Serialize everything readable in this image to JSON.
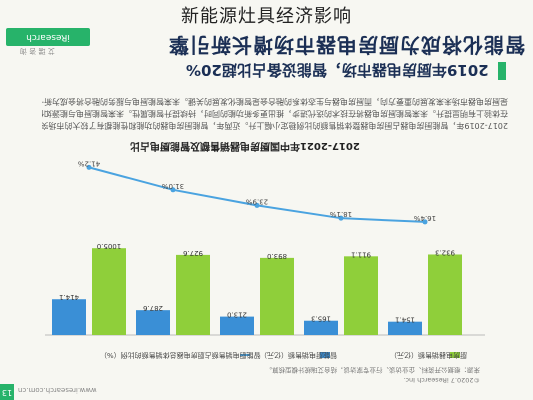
{
  "overlay_title": "新能源灶具经济影响",
  "logo": {
    "name": "iResearch",
    "sub": "艾 瑞 咨 询"
  },
  "doc_heading": "智能化将成为厨房电器市场增长新引擎",
  "section_heading": "2019年厨房电器市场，智能设备占比超20%",
  "paragraphs": [
    "2017-2019年，智能厨房电器占厨房电器整体销售额的比例稳定小幅上升。近两年，智能厨房电器的功能和性能都有了较大的市场突破，",
    "在体验上有明显提升。未来智能厨房电器将在技术的迭代进步，推出更多新功能的同时，持续提升智能属性。未来智能厨电与能源如何更好结合",
    "是厨房电器市场未来发展的重要方向，而厨房电器与生态体系的融合会是智能化发展的关键。未来智能厨电与服务的融合将会成为新一波热潮。"
  ],
  "chart_data": {
    "type": "bar",
    "title": "2017-2021年中国厨房电器销售额及智能厨电占比",
    "categories": [
      "2017",
      "2018",
      "2019",
      "2020e",
      "2021e"
    ],
    "series": [
      {
        "name": "厨房电器销售额（亿元）",
        "values": [
          932.3,
          911.1,
          893.0,
          927.6,
          1005.0
        ],
        "color": "#8fcf3a"
      },
      {
        "name": "智能厨电销售额（亿元）",
        "values": [
          154.1,
          165.3,
          213.0,
          287.6,
          414.1
        ],
        "color": "#3a8fd6"
      },
      {
        "name": "智能厨电销售额占厨房电器总体销售额的比例（%）",
        "values": [
          16.4,
          18.1,
          23.9,
          31.0,
          41.2
        ],
        "color": "#4aa3e0"
      }
    ],
    "labels": {
      "main": [
        "932.3",
        "911.1",
        "893.0",
        "927.6",
        "1005.0"
      ],
      "smart": [
        "154.1",
        "165.3",
        "213.0",
        "287.6",
        "414.1"
      ],
      "ratio": [
        "16.4%",
        "18.1%",
        "23.9%",
        "31.0%",
        "41.2%"
      ]
    },
    "ylim": [
      0,
      1100
    ]
  },
  "footnote": "来源：根据公开资料、企业访谈、行业专家访谈，结合艾瑞统计模型核算。",
  "source": "©2020.7 iResearch Inc.",
  "page_number": "13",
  "site": "www.iresearch.com.cn"
}
